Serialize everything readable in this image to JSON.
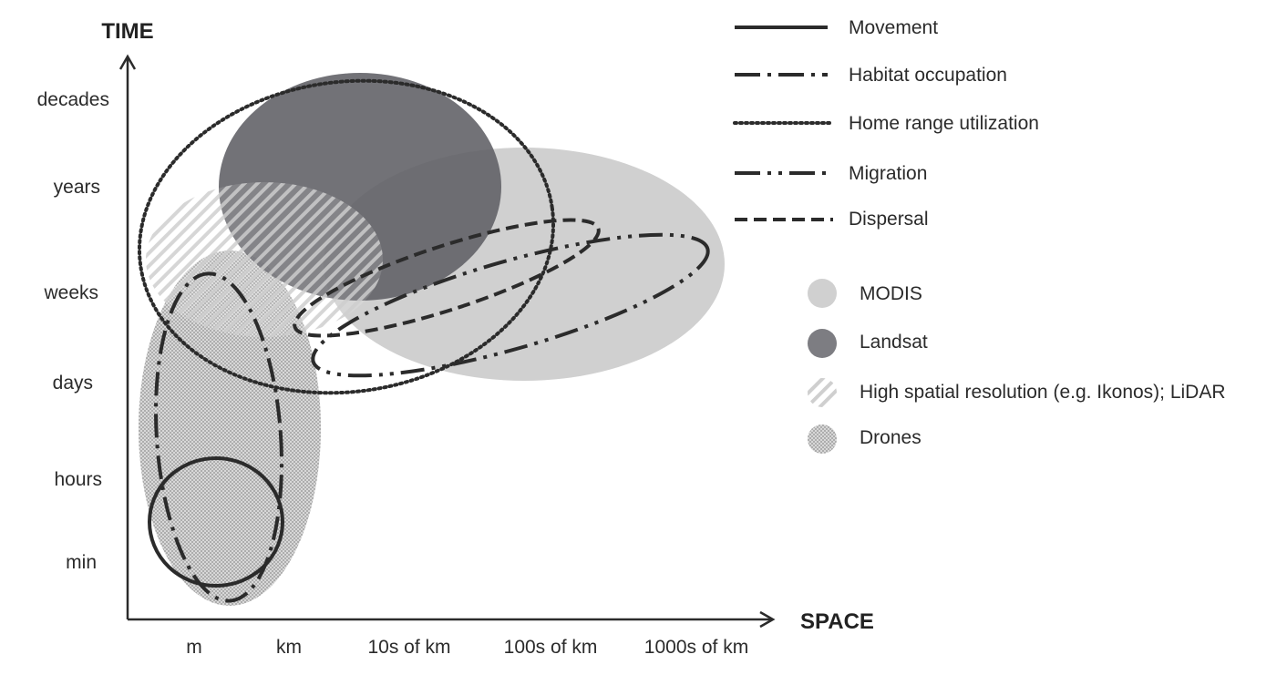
{
  "axes": {
    "y_title": "TIME",
    "x_title": "SPACE",
    "y_ticks": [
      "decades",
      "years",
      "weeks",
      "days",
      "hours",
      "min"
    ],
    "x_ticks": [
      "m",
      "km",
      "10s of km",
      "100s of km",
      "1000s of km"
    ]
  },
  "legend": {
    "processes": [
      {
        "label": "Movement",
        "style": "solid"
      },
      {
        "label": "Habitat occupation",
        "style": "dash-dot"
      },
      {
        "label": "Home range utilization",
        "style": "dotted"
      },
      {
        "label": "Migration",
        "style": "dash-dot-dot"
      },
      {
        "label": "Dispersal",
        "style": "dashed"
      }
    ],
    "sensors": [
      {
        "label": "MODIS",
        "fill": "light-gray"
      },
      {
        "label": "Landsat",
        "fill": "dark-gray"
      },
      {
        "label": "High spatial resolution (e.g. Ikonos); LiDAR",
        "fill": "hatched"
      },
      {
        "label": "Drones",
        "fill": "stippled"
      }
    ]
  },
  "colors": {
    "modis": "#d0d0d0",
    "landsat": "#5f5f64",
    "line": "#2b2b2b",
    "drones": "#b9b9b9",
    "hatch": "#c6c6c6"
  }
}
